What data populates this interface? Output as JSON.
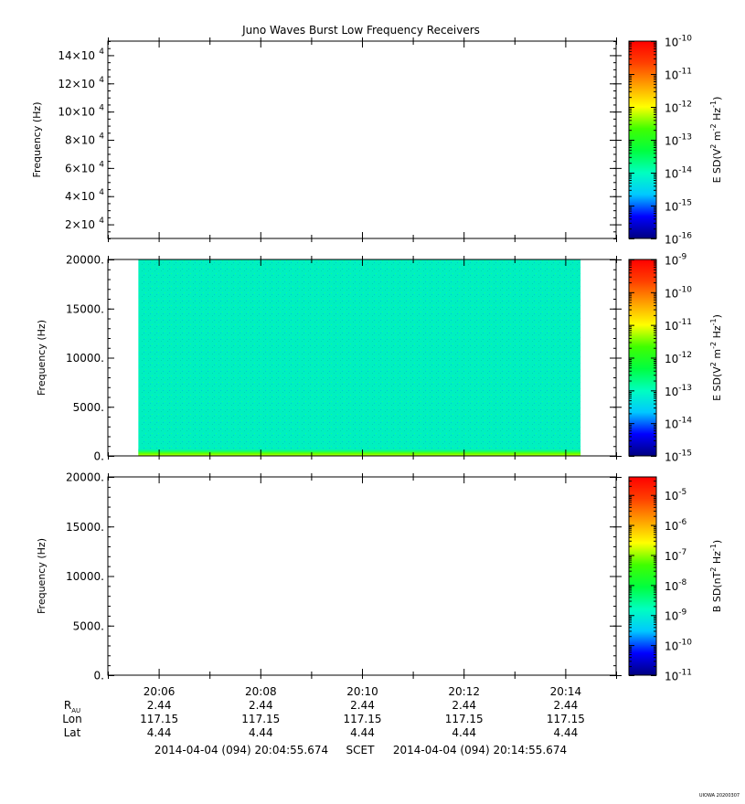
{
  "title": "Juno Waves Burst Low Frequency Receivers",
  "footer": {
    "start_scet": "2014-04-04 (094) 20:04:55.674",
    "scet_label": "SCET",
    "end_scet": "2014-04-04 (094) 20:14:55.674",
    "version_stamp": "UIOWA 20200307"
  },
  "colors": {
    "colormap": [
      "#000080",
      "#0000ff",
      "#00c8ff",
      "#00ffc0",
      "#00ff40",
      "#40ff00",
      "#ffff00",
      "#ffa000",
      "#ff4000",
      "#ff0000"
    ],
    "plot_fill": "#00f0c0"
  },
  "ephemeris": {
    "row_labels": [
      "R",
      "Lon",
      "Lat"
    ],
    "r_subscript": "AU",
    "columns": [
      {
        "r": "2.44",
        "lon": "117.15",
        "lat": "4.44"
      },
      {
        "r": "2.44",
        "lon": "117.15",
        "lat": "4.44"
      },
      {
        "r": "2.44",
        "lon": "117.15",
        "lat": "4.44"
      },
      {
        "r": "2.44",
        "lon": "117.15",
        "lat": "4.44"
      },
      {
        "r": "2.44",
        "lon": "117.15",
        "lat": "4.44"
      }
    ]
  },
  "chart_data": [
    {
      "type": "heatmap",
      "panel": "upper",
      "ylabel": "Frequency (Hz)",
      "ylim": [
        10000,
        150000
      ],
      "yticks": [
        {
          "value": 20000,
          "mant": "2×10",
          "exp": "4"
        },
        {
          "value": 40000,
          "mant": "4×10",
          "exp": "4"
        },
        {
          "value": 60000,
          "mant": "6×10",
          "exp": "4"
        },
        {
          "value": 80000,
          "mant": "8×10",
          "exp": "4"
        },
        {
          "value": 100000,
          "mant": "10×10",
          "exp": "4"
        },
        {
          "value": 120000,
          "mant": "12×10",
          "exp": "4"
        },
        {
          "value": 140000,
          "mant": "14×10",
          "exp": "4"
        }
      ],
      "x_range_minutes": [
        1205,
        1215
      ],
      "xticks": [
        {
          "value": 1206,
          "label": "20:06"
        },
        {
          "value": 1208,
          "label": "20:08"
        },
        {
          "value": 1210,
          "label": "20:10"
        },
        {
          "value": 1212,
          "label": "20:12"
        },
        {
          "value": 1214,
          "label": "20:14"
        }
      ],
      "data_span": null,
      "colorbar": {
        "label": "E SD (V² m⁻² Hz⁻¹)",
        "label_parts": [
          "E SD(V",
          "2",
          " m",
          "-2",
          " Hz",
          "-1",
          ")"
        ],
        "ticks": [
          {
            "mant": "10",
            "exp": "-10"
          },
          {
            "mant": "10",
            "exp": "-11"
          },
          {
            "mant": "10",
            "exp": "-12"
          },
          {
            "mant": "10",
            "exp": "-13"
          },
          {
            "mant": "10",
            "exp": "-14"
          },
          {
            "mant": "10",
            "exp": "-15"
          },
          {
            "mant": "10",
            "exp": "-16"
          }
        ],
        "range_exp": [
          -16,
          -10
        ]
      }
    },
    {
      "type": "heatmap",
      "panel": "middle",
      "ylabel": "Frequency (Hz)",
      "ylim": [
        0,
        20000
      ],
      "yticks": [
        {
          "value": 0,
          "label": "0."
        },
        {
          "value": 5000,
          "label": "5000."
        },
        {
          "value": 10000,
          "label": "10000."
        },
        {
          "value": 15000,
          "label": "15000."
        },
        {
          "value": 20000,
          "label": "20000."
        }
      ],
      "x_range_minutes": [
        1205,
        1215
      ],
      "xticks": [
        {
          "value": 1206,
          "label": "20:06"
        },
        {
          "value": 1208,
          "label": "20:08"
        },
        {
          "value": 1210,
          "label": "20:10"
        },
        {
          "value": 1212,
          "label": "20:12"
        },
        {
          "value": 1214,
          "label": "20:14"
        }
      ],
      "data_span": [
        1205.6,
        1214.3
      ],
      "data_note_levels": {
        "background_exp": -13.2,
        "low_band_exp": -11.5,
        "low_band_top_hz": 700
      },
      "colorbar": {
        "label": "E SD (V² m⁻² Hz⁻¹)",
        "label_parts": [
          "E SD(V",
          "2",
          " m",
          "-2",
          " Hz",
          "-1",
          ")"
        ],
        "ticks": [
          {
            "mant": "10",
            "exp": "-9"
          },
          {
            "mant": "10",
            "exp": "-10"
          },
          {
            "mant": "10",
            "exp": "-11"
          },
          {
            "mant": "10",
            "exp": "-12"
          },
          {
            "mant": "10",
            "exp": "-13"
          },
          {
            "mant": "10",
            "exp": "-14"
          },
          {
            "mant": "10",
            "exp": "-15"
          }
        ],
        "range_exp": [
          -15,
          -9
        ]
      }
    },
    {
      "type": "heatmap",
      "panel": "lower",
      "ylabel": "Frequency (Hz)",
      "ylim": [
        0,
        20000
      ],
      "yticks": [
        {
          "value": 0,
          "label": "0."
        },
        {
          "value": 5000,
          "label": "5000."
        },
        {
          "value": 10000,
          "label": "10000."
        },
        {
          "value": 15000,
          "label": "15000."
        },
        {
          "value": 20000,
          "label": "20000."
        }
      ],
      "x_range_minutes": [
        1205,
        1215
      ],
      "xticks": [
        {
          "value": 1206,
          "label": "20:06"
        },
        {
          "value": 1208,
          "label": "20:08"
        },
        {
          "value": 1210,
          "label": "20:10"
        },
        {
          "value": 1212,
          "label": "20:12"
        },
        {
          "value": 1214,
          "label": "20:14"
        }
      ],
      "data_span": null,
      "colorbar": {
        "label": "B SD (nT² Hz⁻¹)",
        "label_parts": [
          "B SD(nT",
          "2",
          " Hz",
          "-1",
          ")"
        ],
        "ticks": [
          {
            "mant": "10",
            "exp": "-5"
          },
          {
            "mant": "10",
            "exp": "-6"
          },
          {
            "mant": "10",
            "exp": "-7"
          },
          {
            "mant": "10",
            "exp": "-8"
          },
          {
            "mant": "10",
            "exp": "-9"
          },
          {
            "mant": "10",
            "exp": "-10"
          },
          {
            "mant": "10",
            "exp": "-11"
          }
        ],
        "range_exp": [
          -11,
          -4.4
        ]
      }
    }
  ]
}
